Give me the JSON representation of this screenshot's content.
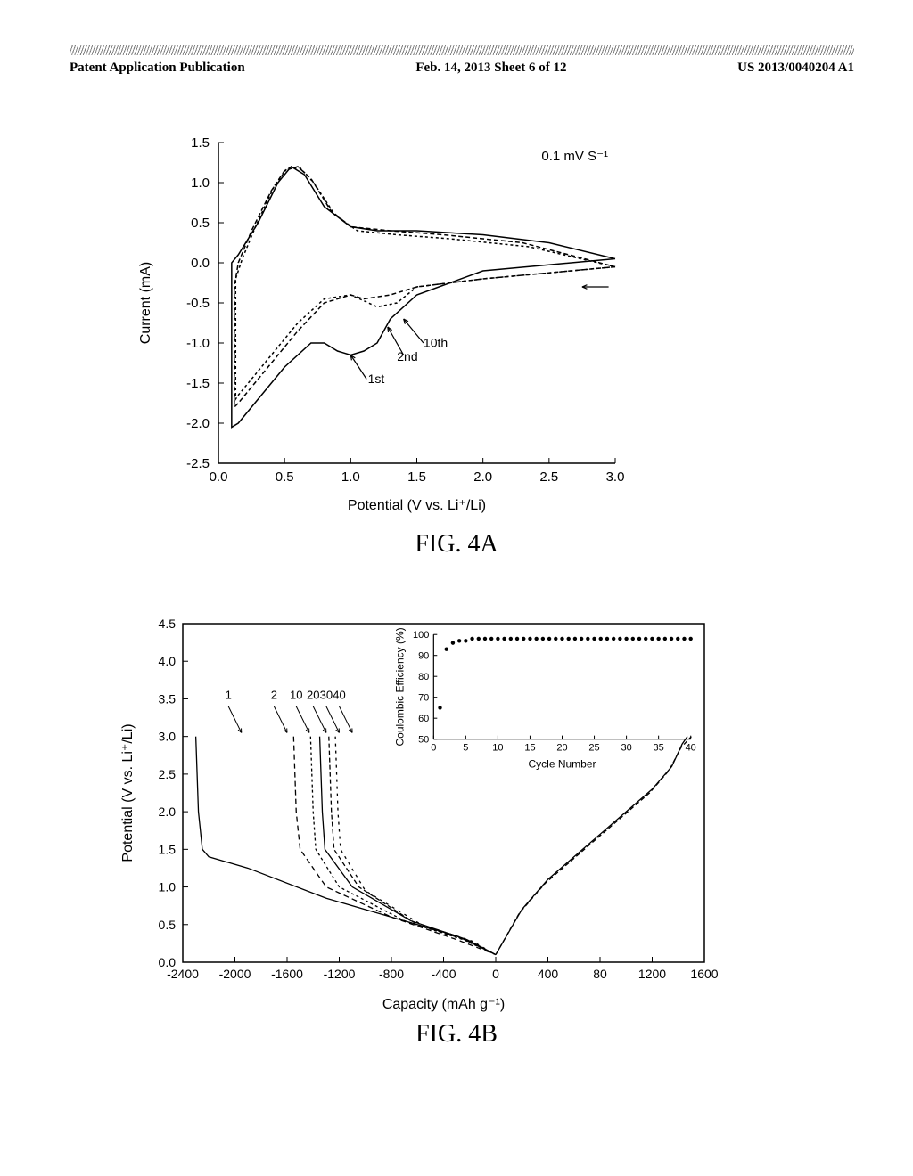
{
  "header": {
    "left": "Patent Application Publication",
    "center": "Feb. 14, 2013  Sheet 6 of 12",
    "right": "US 2013/0040204 A1"
  },
  "chartA": {
    "title": "FIG. 4A",
    "xlabel": "Potential (V vs. Li⁺/Li)",
    "ylabel": "Current (mA)",
    "xlim": [
      0.0,
      3.0
    ],
    "ylim": [
      -2.5,
      1.5
    ],
    "xticks": [
      "0.0",
      "0.5",
      "1.0",
      "1.5",
      "2.0",
      "2.5",
      "3.0"
    ],
    "yticks": [
      "-2.5",
      "-2.0",
      "-1.5",
      "-1.0",
      "-0.5",
      "0.0",
      "0.5",
      "1.0",
      "1.5"
    ],
    "scanRate": "0.1 mV S⁻¹",
    "annotationLabels": [
      "1st",
      "2nd",
      "10th"
    ],
    "series": {
      "first": {
        "style": "solid",
        "color": "#000000",
        "points": [
          [
            3.0,
            0.05
          ],
          [
            2.0,
            -0.1
          ],
          [
            1.5,
            -0.4
          ],
          [
            1.3,
            -0.7
          ],
          [
            1.2,
            -1.0
          ],
          [
            1.1,
            -1.1
          ],
          [
            1.0,
            -1.15
          ],
          [
            0.9,
            -1.1
          ],
          [
            0.8,
            -1.0
          ],
          [
            0.7,
            -1.0
          ],
          [
            0.5,
            -1.3
          ],
          [
            0.3,
            -1.7
          ],
          [
            0.15,
            -2.0
          ],
          [
            0.1,
            -2.05
          ],
          [
            0.1,
            -1.8
          ],
          [
            0.1,
            -1.0
          ],
          [
            0.1,
            0.0
          ],
          [
            0.15,
            0.1
          ],
          [
            0.3,
            0.5
          ],
          [
            0.45,
            1.0
          ],
          [
            0.55,
            1.2
          ],
          [
            0.65,
            1.1
          ],
          [
            0.8,
            0.7
          ],
          [
            1.0,
            0.45
          ],
          [
            1.2,
            0.4
          ],
          [
            1.5,
            0.4
          ],
          [
            2.0,
            0.35
          ],
          [
            2.5,
            0.25
          ],
          [
            3.0,
            0.05
          ]
        ]
      },
      "second": {
        "style": "dashed",
        "color": "#000000",
        "points": [
          [
            3.0,
            -0.05
          ],
          [
            2.0,
            -0.2
          ],
          [
            1.5,
            -0.3
          ],
          [
            1.3,
            -0.4
          ],
          [
            1.1,
            -0.45
          ],
          [
            1.0,
            -0.4
          ],
          [
            0.8,
            -0.5
          ],
          [
            0.6,
            -0.85
          ],
          [
            0.4,
            -1.25
          ],
          [
            0.25,
            -1.55
          ],
          [
            0.15,
            -1.75
          ],
          [
            0.12,
            -1.8
          ],
          [
            0.12,
            -1.2
          ],
          [
            0.12,
            -0.3
          ],
          [
            0.15,
            0.0
          ],
          [
            0.25,
            0.4
          ],
          [
            0.4,
            0.9
          ],
          [
            0.5,
            1.15
          ],
          [
            0.6,
            1.2
          ],
          [
            0.7,
            1.05
          ],
          [
            0.85,
            0.65
          ],
          [
            1.0,
            0.45
          ],
          [
            1.3,
            0.4
          ],
          [
            1.7,
            0.35
          ],
          [
            2.3,
            0.25
          ],
          [
            3.0,
            -0.05
          ]
        ]
      },
      "tenth": {
        "style": "dashed",
        "color": "#000000",
        "points": [
          [
            3.0,
            -0.05
          ],
          [
            2.0,
            -0.2
          ],
          [
            1.5,
            -0.3
          ],
          [
            1.35,
            -0.5
          ],
          [
            1.2,
            -0.55
          ],
          [
            1.0,
            -0.4
          ],
          [
            0.8,
            -0.45
          ],
          [
            0.6,
            -0.75
          ],
          [
            0.4,
            -1.15
          ],
          [
            0.25,
            -1.45
          ],
          [
            0.15,
            -1.65
          ],
          [
            0.13,
            -1.7
          ],
          [
            0.13,
            -1.0
          ],
          [
            0.13,
            -0.2
          ],
          [
            0.18,
            0.05
          ],
          [
            0.28,
            0.45
          ],
          [
            0.42,
            0.95
          ],
          [
            0.52,
            1.18
          ],
          [
            0.62,
            1.18
          ],
          [
            0.72,
            1.0
          ],
          [
            0.88,
            0.6
          ],
          [
            1.05,
            0.4
          ],
          [
            1.35,
            0.35
          ],
          [
            1.75,
            0.3
          ],
          [
            2.35,
            0.2
          ],
          [
            3.0,
            -0.05
          ]
        ]
      }
    }
  },
  "chartB": {
    "title": "FIG. 4B",
    "xlabel": "Capacity (mAh g⁻¹)",
    "ylabel": "Potential (V vs. Li⁺/Li)",
    "xlim": [
      -2400,
      1600
    ],
    "ylim": [
      0.0,
      4.5
    ],
    "xticks": [
      "-2400",
      "-2000",
      "-1600",
      "-1200",
      "-800",
      "-400",
      "0",
      "400",
      "80",
      "1200",
      "1600"
    ],
    "yticks": [
      "0.0",
      "0.5",
      "1.0",
      "1.5",
      "2.0",
      "2.5",
      "3.0",
      "3.5",
      "4.0",
      "4.5"
    ],
    "cycleLabels": [
      "1",
      "2",
      "10",
      "20",
      "30",
      "40"
    ],
    "inset": {
      "xlabel": "Cycle Number",
      "ylabel": "Coulombic Efficiency (%)",
      "xlim": [
        0,
        40
      ],
      "ylim": [
        50,
        100
      ],
      "xticks": [
        "0",
        "5",
        "10",
        "15",
        "20",
        "25",
        "30",
        "35",
        "40"
      ],
      "yticks": [
        "50",
        "60",
        "70",
        "80",
        "90",
        "100"
      ],
      "data": [
        [
          1,
          65
        ],
        [
          2,
          93
        ],
        [
          3,
          96
        ],
        [
          4,
          97
        ],
        [
          5,
          97
        ],
        [
          6,
          98
        ],
        [
          7,
          98
        ],
        [
          8,
          98
        ],
        [
          9,
          98
        ],
        [
          10,
          98
        ],
        [
          11,
          98
        ],
        [
          12,
          98
        ],
        [
          13,
          98
        ],
        [
          14,
          98
        ],
        [
          15,
          98
        ],
        [
          16,
          98
        ],
        [
          17,
          98
        ],
        [
          18,
          98
        ],
        [
          19,
          98
        ],
        [
          20,
          98
        ],
        [
          21,
          98
        ],
        [
          22,
          98
        ],
        [
          23,
          98
        ],
        [
          24,
          98
        ],
        [
          25,
          98
        ],
        [
          26,
          98
        ],
        [
          27,
          98
        ],
        [
          28,
          98
        ],
        [
          29,
          98
        ],
        [
          30,
          98
        ],
        [
          31,
          98
        ],
        [
          32,
          98
        ],
        [
          33,
          98
        ],
        [
          34,
          98
        ],
        [
          35,
          98
        ],
        [
          36,
          98
        ],
        [
          37,
          98
        ],
        [
          38,
          98
        ],
        [
          39,
          98
        ],
        [
          40,
          98
        ]
      ]
    },
    "series": {
      "discharge1": {
        "style": "solid",
        "points": [
          [
            -2300,
            3.0
          ],
          [
            -2280,
            2.0
          ],
          [
            -2250,
            1.5
          ],
          [
            -2200,
            1.4
          ],
          [
            -1900,
            1.25
          ],
          [
            -1300,
            0.85
          ],
          [
            -800,
            0.6
          ],
          [
            -300,
            0.35
          ],
          [
            0,
            0.1
          ]
        ]
      },
      "discharge2": {
        "style": "dashed",
        "points": [
          [
            -1550,
            3.0
          ],
          [
            -1530,
            2.0
          ],
          [
            -1500,
            1.5
          ],
          [
            -1300,
            1.0
          ],
          [
            -800,
            0.6
          ],
          [
            -300,
            0.3
          ],
          [
            0,
            0.1
          ]
        ]
      },
      "discharge10": {
        "style": "dashed",
        "points": [
          [
            -1420,
            3.0
          ],
          [
            -1400,
            2.0
          ],
          [
            -1380,
            1.5
          ],
          [
            -1200,
            1.0
          ],
          [
            -700,
            0.55
          ],
          [
            -250,
            0.3
          ],
          [
            0,
            0.1
          ]
        ]
      },
      "discharge20": {
        "style": "solid",
        "points": [
          [
            -1350,
            3.0
          ],
          [
            -1330,
            2.0
          ],
          [
            -1310,
            1.5
          ],
          [
            -1100,
            1.0
          ],
          [
            -650,
            0.55
          ],
          [
            -220,
            0.3
          ],
          [
            0,
            0.1
          ]
        ]
      },
      "discharge30": {
        "style": "dashed",
        "points": [
          [
            -1280,
            3.0
          ],
          [
            -1260,
            2.0
          ],
          [
            -1240,
            1.5
          ],
          [
            -1050,
            1.0
          ],
          [
            -600,
            0.5
          ],
          [
            -200,
            0.28
          ],
          [
            0,
            0.1
          ]
        ]
      },
      "discharge40": {
        "style": "dashed",
        "points": [
          [
            -1230,
            3.0
          ],
          [
            -1210,
            2.0
          ],
          [
            -1190,
            1.5
          ],
          [
            -1000,
            0.95
          ],
          [
            -570,
            0.5
          ],
          [
            -180,
            0.28
          ],
          [
            0,
            0.1
          ]
        ]
      },
      "charge": {
        "style": "solid",
        "points": [
          [
            0,
            0.1
          ],
          [
            200,
            0.7
          ],
          [
            400,
            1.1
          ],
          [
            600,
            1.4
          ],
          [
            800,
            1.7
          ],
          [
            1000,
            2.0
          ],
          [
            1200,
            2.3
          ],
          [
            1350,
            2.6
          ],
          [
            1430,
            2.9
          ],
          [
            1470,
            3.0
          ]
        ]
      },
      "charge2": {
        "style": "dashed",
        "points": [
          [
            0,
            0.1
          ],
          [
            180,
            0.65
          ],
          [
            380,
            1.05
          ],
          [
            580,
            1.35
          ],
          [
            780,
            1.65
          ],
          [
            980,
            1.95
          ],
          [
            1180,
            2.25
          ],
          [
            1330,
            2.55
          ],
          [
            1420,
            2.85
          ],
          [
            1500,
            3.0
          ]
        ]
      }
    }
  },
  "colors": {
    "line": "#000000",
    "background": "#ffffff"
  }
}
